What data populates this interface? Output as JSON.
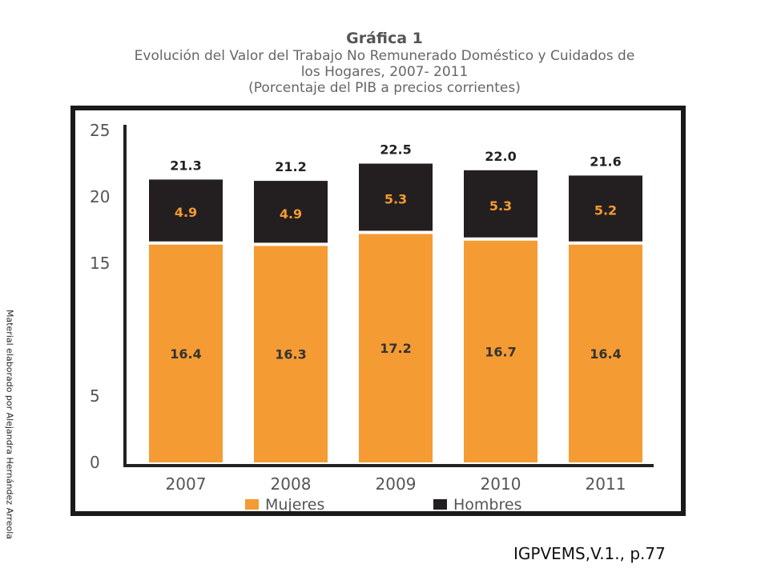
{
  "header": {
    "title": "Gráfica 1",
    "subtitle_lines": [
      "Evolución del Valor del Trabajo No Remunerado Doméstico y Cuidados de",
      "los Hogares, 2007- 2011",
      "(Porcentaje del PIB a precios corrientes)"
    ]
  },
  "side_note": "Material elaborado por Alejandra Hernández Arreola",
  "citation": "IGPVEMS,V.1., p.77",
  "colors": {
    "mujeres": "#f59b33",
    "hombres": "#231f20",
    "axis": "#222222"
  },
  "chart_data": {
    "type": "bar",
    "stacked": true,
    "categories": [
      "2007",
      "2008",
      "2009",
      "2010",
      "2011"
    ],
    "series": [
      {
        "name": "Mujeres",
        "values": [
          16.4,
          16.3,
          17.2,
          16.7,
          16.4
        ]
      },
      {
        "name": "Hombres",
        "values": [
          4.9,
          4.9,
          5.3,
          5.3,
          5.2
        ]
      }
    ],
    "totals": [
      21.3,
      21.2,
      22.5,
      22.0,
      21.6
    ],
    "y_ticks": [
      0,
      5,
      15,
      20,
      25
    ],
    "ylim": [
      0,
      25
    ],
    "legend_position": "bottom",
    "grid": false
  }
}
